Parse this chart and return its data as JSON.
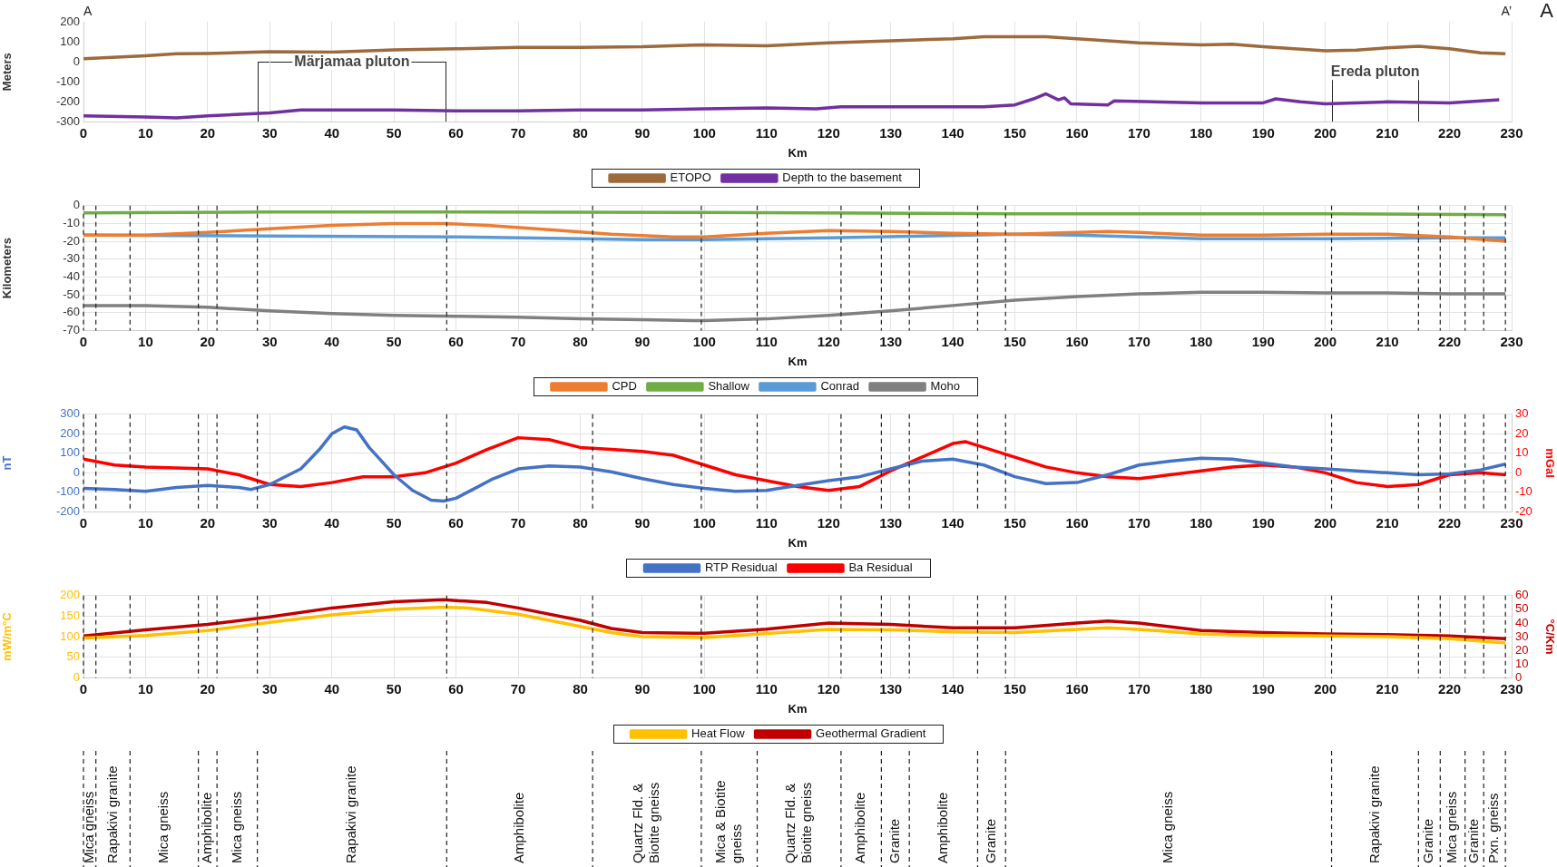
{
  "chart_data": [
    {
      "type": "line",
      "xlabel": "Km",
      "ylabel": "Meters",
      "xlim": [
        0,
        230
      ],
      "xticks": [
        0,
        10,
        20,
        30,
        40,
        50,
        60,
        70,
        80,
        90,
        100,
        110,
        120,
        130,
        140,
        150,
        160,
        170,
        180,
        190,
        200,
        210,
        220,
        230
      ],
      "ylim": [
        -300,
        200
      ],
      "yticks": [
        -300,
        -200,
        -100,
        0,
        100,
        200
      ],
      "grid": "x",
      "legend": "bottom",
      "annotations": [
        "A",
        "A’",
        "A",
        "Märjamaa pluton",
        "Ereda pluton"
      ],
      "series": [
        {
          "name": "ETOPO",
          "color": "#9c6a3c",
          "x": [
            0,
            10,
            15,
            20,
            30,
            40,
            50,
            60,
            70,
            80,
            90,
            100,
            110,
            120,
            130,
            140,
            145,
            155,
            160,
            170,
            180,
            185,
            190,
            200,
            205,
            210,
            215,
            220,
            225,
            229
          ],
          "values": [
            15,
            30,
            40,
            42,
            50,
            48,
            60,
            65,
            72,
            72,
            75,
            85,
            80,
            95,
            105,
            115,
            125,
            125,
            115,
            95,
            85,
            88,
            75,
            55,
            58,
            70,
            78,
            65,
            45,
            40
          ]
        },
        {
          "name": "Depth to the basement",
          "color": "#7030a0",
          "x": [
            0,
            10,
            15,
            20,
            30,
            35,
            50,
            60,
            70,
            80,
            90,
            100,
            110,
            118,
            122,
            130,
            140,
            145,
            150,
            153,
            155,
            157,
            158,
            159,
            165,
            166,
            180,
            190,
            192,
            196,
            200,
            210,
            220,
            228
          ],
          "values": [
            -270,
            -275,
            -280,
            -270,
            -255,
            -240,
            -240,
            -245,
            -245,
            -240,
            -240,
            -235,
            -230,
            -235,
            -225,
            -225,
            -225,
            -225,
            -215,
            -185,
            -160,
            -190,
            -180,
            -210,
            -215,
            -195,
            -205,
            -205,
            -185,
            -200,
            -210,
            -200,
            -205,
            -190
          ]
        }
      ]
    },
    {
      "type": "line",
      "xlabel": "Km",
      "ylabel": "Kilometers",
      "xlim": [
        0,
        230
      ],
      "xticks": [
        0,
        10,
        20,
        30,
        40,
        50,
        60,
        70,
        80,
        90,
        100,
        110,
        120,
        130,
        140,
        150,
        160,
        170,
        180,
        190,
        200,
        210,
        220,
        230
      ],
      "ylim": [
        -70,
        0
      ],
      "yticks": [
        -70,
        -60,
        -50,
        -40,
        -30,
        -20,
        -10,
        0
      ],
      "grid": true,
      "legend": "bottom",
      "ref_lines": [
        {
          "axis": "x",
          "value": 0
        },
        {
          "axis": "x",
          "value": 2
        },
        {
          "axis": "x",
          "value": 7.5
        },
        {
          "axis": "x",
          "value": 18.5
        },
        {
          "axis": "x",
          "value": 21.5
        },
        {
          "axis": "x",
          "value": 28
        },
        {
          "axis": "x",
          "value": 58.5
        },
        {
          "axis": "x",
          "value": 82
        },
        {
          "axis": "x",
          "value": 99.5
        },
        {
          "axis": "x",
          "value": 108.5
        },
        {
          "axis": "x",
          "value": 122
        },
        {
          "axis": "x",
          "value": 128.5
        },
        {
          "axis": "x",
          "value": 133
        },
        {
          "axis": "x",
          "value": 144
        },
        {
          "axis": "x",
          "value": 148.5
        },
        {
          "axis": "x",
          "value": 201
        },
        {
          "axis": "x",
          "value": 215
        },
        {
          "axis": "x",
          "value": 218.5
        },
        {
          "axis": "x",
          "value": 222.5
        },
        {
          "axis": "x",
          "value": 225.5
        },
        {
          "axis": "x",
          "value": 229
        }
      ],
      "series": [
        {
          "name": "CPD",
          "color": "#ed7d31",
          "x": [
            0,
            10,
            20,
            30,
            40,
            50,
            58,
            65,
            75,
            85,
            95,
            100,
            110,
            120,
            130,
            140,
            150,
            160,
            165,
            170,
            180,
            190,
            200,
            210,
            220,
            229
          ],
          "values": [
            -16.5,
            -16.5,
            -15,
            -13,
            -11,
            -10,
            -10,
            -11,
            -13.5,
            -16,
            -17.5,
            -17.5,
            -15.5,
            -14,
            -14.5,
            -15.5,
            -16,
            -15,
            -14.5,
            -15,
            -16.5,
            -16.5,
            -16,
            -16,
            -17.5,
            -20
          ]
        },
        {
          "name": "Shallow",
          "color": "#70ad47",
          "x": [
            0,
            30,
            60,
            100,
            150,
            200,
            229
          ],
          "values": [
            -4,
            -3.5,
            -3.5,
            -3.8,
            -4.5,
            -4.5,
            -5
          ]
        },
        {
          "name": "Conrad",
          "color": "#5b9bd5",
          "x": [
            0,
            30,
            60,
            90,
            100,
            120,
            150,
            160,
            180,
            200,
            220,
            229
          ],
          "values": [
            -16.5,
            -17,
            -17.5,
            -19,
            -19,
            -18,
            -16,
            -16.5,
            -18.5,
            -18.5,
            -18,
            -18
          ]
        },
        {
          "name": "Moho",
          "color": "#808080",
          "x": [
            0,
            10,
            20,
            30,
            40,
            50,
            60,
            70,
            80,
            90,
            100,
            110,
            120,
            130,
            140,
            150,
            160,
            170,
            180,
            190,
            200,
            210,
            220,
            229
          ],
          "values": [
            -56,
            -56,
            -57,
            -59,
            -60.5,
            -61.5,
            -62,
            -62.5,
            -63.5,
            -64,
            -64.5,
            -63.5,
            -61.5,
            -59,
            -56,
            -53,
            -51,
            -49.5,
            -48.5,
            -48.5,
            -49,
            -49,
            -49.5,
            -49.5
          ]
        }
      ]
    },
    {
      "type": "line",
      "xlabel": "Km",
      "ylabel": "nT",
      "y2label": "mGal",
      "xlim": [
        0,
        230
      ],
      "xticks": [
        0,
        10,
        20,
        30,
        40,
        50,
        60,
        70,
        80,
        90,
        100,
        110,
        120,
        130,
        140,
        150,
        160,
        170,
        180,
        190,
        200,
        210,
        220,
        230
      ],
      "ylim": [
        -200,
        300
      ],
      "yticks": [
        -200,
        -100,
        0,
        100,
        200,
        300
      ],
      "y2lim": [
        -20,
        30
      ],
      "y2ticks": [
        -20,
        -10,
        0,
        10,
        20,
        30
      ],
      "grid": true,
      "legend": "bottom",
      "ref_lines": [
        {
          "axis": "x",
          "value": 0
        },
        {
          "axis": "x",
          "value": 2
        },
        {
          "axis": "x",
          "value": 7.5
        },
        {
          "axis": "x",
          "value": 18.5
        },
        {
          "axis": "x",
          "value": 21.5
        },
        {
          "axis": "x",
          "value": 28
        },
        {
          "axis": "x",
          "value": 58.5
        },
        {
          "axis": "x",
          "value": 82
        },
        {
          "axis": "x",
          "value": 99.5
        },
        {
          "axis": "x",
          "value": 108.5
        },
        {
          "axis": "x",
          "value": 122
        },
        {
          "axis": "x",
          "value": 128.5
        },
        {
          "axis": "x",
          "value": 133
        },
        {
          "axis": "x",
          "value": 144
        },
        {
          "axis": "x",
          "value": 148.5
        },
        {
          "axis": "x",
          "value": 201
        },
        {
          "axis": "x",
          "value": 215
        },
        {
          "axis": "x",
          "value": 218.5
        },
        {
          "axis": "x",
          "value": 222.5
        },
        {
          "axis": "x",
          "value": 225.5
        },
        {
          "axis": "x",
          "value": 229
        }
      ],
      "series": [
        {
          "name": "RTP Residual",
          "color": "#4472c4",
          "x": [
            0,
            5,
            10,
            15,
            20,
            25,
            27,
            30,
            35,
            38,
            40,
            42,
            44,
            46,
            48,
            50,
            53,
            56,
            58,
            60,
            63,
            66,
            70,
            75,
            80,
            85,
            90,
            95,
            100,
            105,
            110,
            115,
            120,
            125,
            130,
            135,
            140,
            145,
            150,
            155,
            160,
            165,
            170,
            175,
            180,
            185,
            190,
            195,
            200,
            205,
            210,
            215,
            220,
            225,
            229
          ],
          "values": [
            -80,
            -85,
            -95,
            -75,
            -65,
            -75,
            -85,
            -60,
            20,
            120,
            200,
            235,
            220,
            130,
            60,
            -10,
            -90,
            -140,
            -145,
            -130,
            -80,
            -30,
            20,
            35,
            30,
            5,
            -30,
            -60,
            -80,
            -95,
            -90,
            -65,
            -40,
            -20,
            20,
            60,
            70,
            40,
            -20,
            -55,
            -50,
            -10,
            40,
            60,
            75,
            70,
            50,
            30,
            20,
            10,
            0,
            -10,
            -5,
            15,
            45
          ]
        },
        {
          "name": "Ba Residual",
          "color": "#ff0000",
          "axis": "y2",
          "x": [
            0,
            5,
            10,
            20,
            25,
            30,
            35,
            40,
            45,
            50,
            55,
            60,
            65,
            70,
            75,
            80,
            85,
            90,
            95,
            100,
            105,
            110,
            115,
            120,
            125,
            130,
            135,
            140,
            142,
            145,
            150,
            155,
            160,
            165,
            170,
            175,
            180,
            185,
            190,
            195,
            200,
            205,
            210,
            215,
            220,
            225,
            229
          ],
          "values": [
            7,
            4,
            3,
            2,
            -1,
            -6,
            -7,
            -5,
            -2,
            -2,
            0,
            5,
            12,
            18,
            17,
            13,
            12,
            11,
            9,
            4,
            -1,
            -4,
            -7,
            -9,
            -7,
            1,
            8,
            15,
            16,
            13,
            8,
            3,
            0,
            -2,
            -3,
            -1,
            1,
            3,
            4,
            3,
            0,
            -5,
            -7,
            -6,
            -1,
            0,
            -1
          ]
        }
      ]
    },
    {
      "type": "line",
      "xlabel": "Km",
      "ylabel": "mW/m°C",
      "y2label": "°C/Km",
      "xlim": [
        0,
        230
      ],
      "xticks": [
        0,
        10,
        20,
        30,
        40,
        50,
        60,
        70,
        80,
        90,
        100,
        110,
        120,
        130,
        140,
        150,
        160,
        170,
        180,
        190,
        200,
        210,
        220,
        230
      ],
      "ylim": [
        0,
        200
      ],
      "yticks": [
        0,
        50,
        100,
        150,
        200
      ],
      "y2lim": [
        0,
        60
      ],
      "y2ticks": [
        0,
        10,
        20,
        30,
        40,
        50,
        60
      ],
      "grid": true,
      "legend": "bottom",
      "ref_lines": [
        {
          "axis": "x",
          "value": 0
        },
        {
          "axis": "x",
          "value": 2
        },
        {
          "axis": "x",
          "value": 7.5
        },
        {
          "axis": "x",
          "value": 18.5
        },
        {
          "axis": "x",
          "value": 21.5
        },
        {
          "axis": "x",
          "value": 28
        },
        {
          "axis": "x",
          "value": 58.5
        },
        {
          "axis": "x",
          "value": 82
        },
        {
          "axis": "x",
          "value": 99.5
        },
        {
          "axis": "x",
          "value": 108.5
        },
        {
          "axis": "x",
          "value": 122
        },
        {
          "axis": "x",
          "value": 128.5
        },
        {
          "axis": "x",
          "value": 133
        },
        {
          "axis": "x",
          "value": 144
        },
        {
          "axis": "x",
          "value": 148.5
        },
        {
          "axis": "x",
          "value": 201
        },
        {
          "axis": "x",
          "value": 215
        },
        {
          "axis": "x",
          "value": 218.5
        },
        {
          "axis": "x",
          "value": 222.5
        },
        {
          "axis": "x",
          "value": 225.5
        },
        {
          "axis": "x",
          "value": 229
        }
      ],
      "annotations": [
        "Mica gneiss",
        "Rapakivi granite",
        "Mica gneiss",
        "Amphibolite",
        "Mica gneiss",
        "Rapakivi granite",
        "Amphibolite",
        "Quartz Fld. & Biotite gneiss",
        "Mica & Biotite gneiss",
        "Quartz Fld. & Biotite gneiss",
        "Amphibolite",
        "Granite",
        "Amphibolite",
        "Granite",
        "Mica gneiss",
        "Rapakivi granite",
        "Granite",
        "Mica gneiss",
        "Granite",
        "Pxn. gneiss"
      ],
      "series": [
        {
          "name": "Heat Flow",
          "color": "#ffc000",
          "x": [
            0,
            10,
            20,
            30,
            40,
            50,
            58,
            62,
            70,
            80,
            85,
            90,
            100,
            110,
            120,
            130,
            140,
            150,
            160,
            165,
            170,
            180,
            190,
            200,
            210,
            220,
            229
          ],
          "values": [
            97,
            103,
            115,
            135,
            153,
            167,
            172,
            170,
            155,
            125,
            110,
            100,
            98,
            108,
            118,
            117,
            112,
            110,
            118,
            122,
            118,
            107,
            103,
            102,
            100,
            95,
            85
          ]
        },
        {
          "name": "Geothermal Gradient",
          "color": "#c00000",
          "axis": "y2",
          "x": [
            0,
            10,
            20,
            30,
            40,
            50,
            58,
            65,
            70,
            80,
            85,
            90,
            100,
            110,
            120,
            130,
            140,
            150,
            160,
            165,
            170,
            180,
            190,
            200,
            210,
            220,
            229
          ],
          "values": [
            30.5,
            35,
            39,
            44.5,
            51,
            55.5,
            57,
            55,
            51,
            42,
            36,
            33,
            32.5,
            35.5,
            40,
            39,
            36.5,
            36.5,
            40,
            41.5,
            40,
            34.5,
            33,
            32,
            31.5,
            30.5,
            28.5
          ]
        }
      ]
    }
  ]
}
